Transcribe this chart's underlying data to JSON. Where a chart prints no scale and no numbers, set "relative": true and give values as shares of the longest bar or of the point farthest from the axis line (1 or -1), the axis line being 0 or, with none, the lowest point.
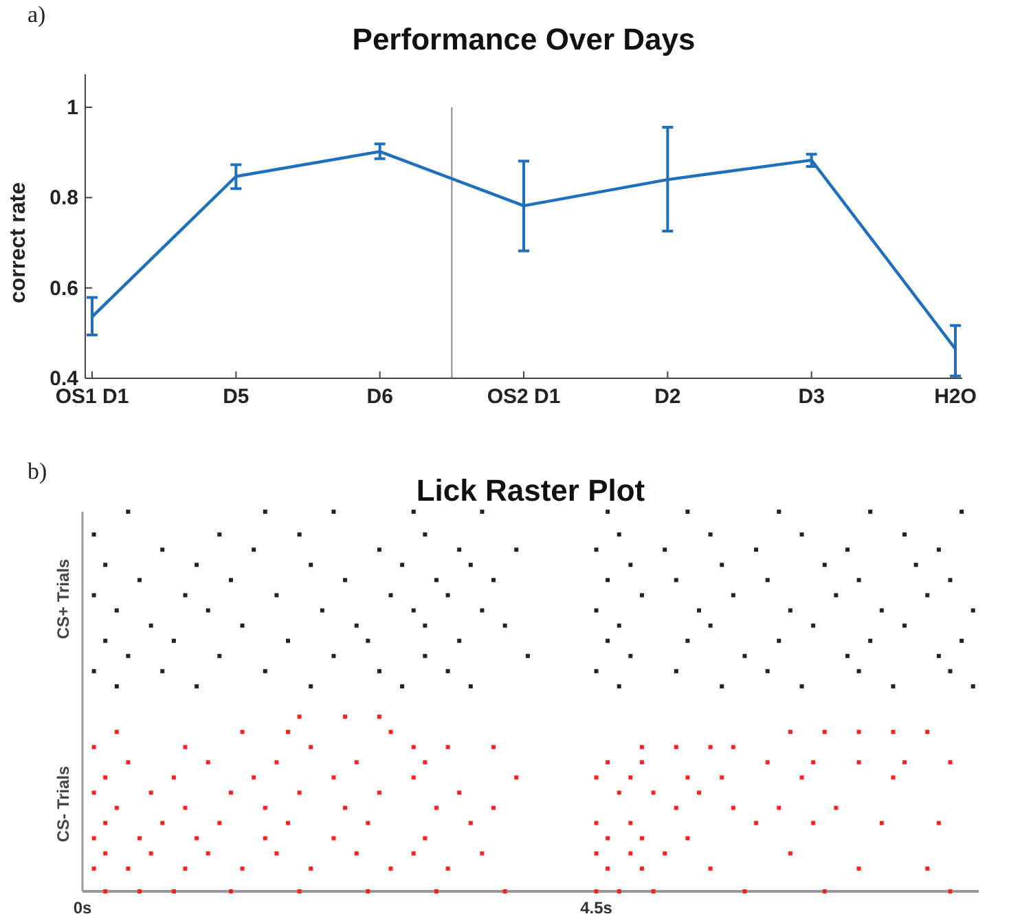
{
  "chart_data": [
    {
      "type": "line",
      "title": "Performance Over Days",
      "ylabel": "correct rate",
      "annotations": [
        "a)"
      ],
      "categories": [
        "OS1 D1",
        "D5",
        "D6",
        "OS2 D1",
        "D2",
        "D3",
        "H2O"
      ],
      "series": [
        {
          "color": "#1f6fbf",
          "values": [
            0.536,
            0.847,
            0.902,
            0.782,
            0.84,
            0.883,
            0.465
          ],
          "errors": [
            [
              0.496,
              0.579
            ],
            [
              0.82,
              0.873
            ],
            [
              0.886,
              0.919
            ],
            [
              0.682,
              0.881
            ],
            [
              0.726,
              0.956
            ],
            [
              0.869,
              0.896
            ],
            [
              0.405,
              0.517
            ]
          ]
        }
      ],
      "ylim": [
        0.4,
        1
      ],
      "yticks": [
        0.4,
        0.6,
        0.8,
        1
      ],
      "marker": "none",
      "line_style": "solid",
      "grid": false
    },
    {
      "type": "scatter",
      "title": "Lick Raster Plot",
      "annotations": [
        "b)"
      ],
      "relative": true,
      "marker": "square",
      "legend": "left",
      "xlim": [
        0,
        7.85
      ],
      "xticks": [
        {
          "value": 0,
          "label": "0s"
        },
        {
          "value": 4.5,
          "label": "4.5s"
        }
      ],
      "series": [
        {
          "name": "CS+ Trials",
          "color": "#222222",
          "x": [
            0.4,
            1.6,
            2.2,
            2.9,
            3.5,
            4.6,
            5.3,
            6.1,
            6.9,
            7.7,
            0.1,
            1.2,
            1.9,
            3.0,
            4.7,
            5.5,
            6.3,
            7.2,
            0.7,
            1.5,
            2.6,
            3.3,
            3.8,
            4.5,
            5.1,
            5.9,
            6.7,
            7.5,
            0.2,
            1.0,
            2.0,
            2.8,
            3.4,
            4.8,
            5.6,
            6.5,
            7.3,
            0.5,
            1.3,
            2.3,
            3.1,
            3.6,
            4.6,
            5.2,
            6.0,
            6.8,
            7.6,
            0.1,
            0.9,
            1.7,
            2.7,
            3.2,
            4.9,
            5.7,
            6.6,
            7.4,
            0.3,
            1.1,
            2.1,
            2.9,
            3.5,
            4.5,
            5.4,
            6.2,
            7.0,
            7.8,
            0.6,
            1.4,
            2.4,
            3.0,
            3.7,
            4.7,
            5.5,
            6.4,
            7.2,
            0.2,
            0.8,
            1.8,
            2.5,
            3.3,
            4.6,
            5.3,
            6.1,
            6.9,
            7.7,
            0.4,
            1.2,
            2.2,
            3.0,
            3.9,
            4.8,
            5.8,
            6.7,
            7.5,
            0.1,
            0.7,
            1.6,
            2.6,
            3.2,
            4.5,
            5.2,
            6.0,
            6.8,
            7.6,
            0.3,
            1.0,
            2.0,
            2.8,
            3.4,
            4.7,
            5.6,
            6.3,
            7.1,
            7.8
          ],
          "values": [
            1,
            1,
            1,
            1,
            1,
            1,
            1,
            1,
            1,
            1,
            0.94,
            0.94,
            0.94,
            0.94,
            0.94,
            0.94,
            0.94,
            0.94,
            0.9,
            0.9,
            0.9,
            0.9,
            0.9,
            0.9,
            0.9,
            0.9,
            0.9,
            0.9,
            0.86,
            0.86,
            0.86,
            0.86,
            0.86,
            0.86,
            0.86,
            0.86,
            0.86,
            0.82,
            0.82,
            0.82,
            0.82,
            0.82,
            0.82,
            0.82,
            0.82,
            0.82,
            0.82,
            0.78,
            0.78,
            0.78,
            0.78,
            0.78,
            0.78,
            0.78,
            0.78,
            0.78,
            0.74,
            0.74,
            0.74,
            0.74,
            0.74,
            0.74,
            0.74,
            0.74,
            0.74,
            0.74,
            0.7,
            0.7,
            0.7,
            0.7,
            0.7,
            0.7,
            0.7,
            0.7,
            0.7,
            0.66,
            0.66,
            0.66,
            0.66,
            0.66,
            0.66,
            0.66,
            0.66,
            0.66,
            0.66,
            0.62,
            0.62,
            0.62,
            0.62,
            0.62,
            0.62,
            0.62,
            0.62,
            0.62,
            0.58,
            0.58,
            0.58,
            0.58,
            0.58,
            0.58,
            0.58,
            0.58,
            0.58,
            0.58,
            0.54,
            0.54,
            0.54,
            0.54,
            0.54,
            0.54,
            0.54,
            0.54,
            0.54,
            0.54
          ]
        },
        {
          "name": "CS- Trials",
          "color": "#ff2020",
          "x": [
            1.9,
            2.3,
            2.6,
            0.3,
            1.4,
            1.8,
            2.7,
            6.2,
            6.5,
            6.8,
            7.1,
            7.4,
            0.1,
            0.9,
            2.0,
            2.9,
            3.2,
            3.6,
            4.9,
            5.2,
            5.5,
            5.7,
            0.4,
            1.1,
            1.7,
            2.4,
            3.0,
            4.6,
            4.9,
            6.0,
            6.4,
            6.8,
            7.2,
            7.6,
            0.2,
            0.8,
            1.5,
            2.2,
            2.9,
            3.8,
            4.5,
            4.8,
            5.3,
            5.6,
            6.3,
            7.1,
            0.1,
            0.6,
            1.3,
            1.9,
            2.6,
            3.3,
            4.7,
            5.0,
            5.4,
            0.3,
            0.9,
            1.6,
            2.3,
            3.1,
            3.6,
            5.2,
            5.7,
            6.1,
            6.6,
            0.2,
            0.7,
            1.2,
            1.8,
            2.5,
            3.4,
            4.5,
            4.8,
            5.9,
            6.4,
            7.0,
            7.5,
            0.1,
            0.5,
            1.0,
            1.6,
            2.2,
            3.0,
            4.6,
            4.9,
            5.3,
            0.2,
            0.6,
            1.1,
            1.7,
            2.4,
            2.9,
            3.5,
            4.5,
            4.8,
            5.1,
            6.2,
            0.1,
            0.4,
            0.9,
            1.4,
            2.0,
            2.7,
            3.2,
            4.6,
            4.9,
            5.5,
            6.8,
            7.4,
            0.2,
            0.5,
            0.8,
            1.3,
            1.9,
            2.5,
            3.1,
            3.7,
            4.5,
            4.7,
            5.0,
            5.8,
            6.5,
            7.6
          ],
          "values": [
            0.46,
            0.46,
            0.46,
            0.42,
            0.42,
            0.42,
            0.42,
            0.42,
            0.42,
            0.42,
            0.42,
            0.42,
            0.38,
            0.38,
            0.38,
            0.38,
            0.38,
            0.38,
            0.38,
            0.38,
            0.38,
            0.38,
            0.34,
            0.34,
            0.34,
            0.34,
            0.34,
            0.34,
            0.34,
            0.34,
            0.34,
            0.34,
            0.34,
            0.34,
            0.3,
            0.3,
            0.3,
            0.3,
            0.3,
            0.3,
            0.3,
            0.3,
            0.3,
            0.3,
            0.3,
            0.3,
            0.26,
            0.26,
            0.26,
            0.26,
            0.26,
            0.26,
            0.26,
            0.26,
            0.26,
            0.22,
            0.22,
            0.22,
            0.22,
            0.22,
            0.22,
            0.22,
            0.22,
            0.22,
            0.22,
            0.18,
            0.18,
            0.18,
            0.18,
            0.18,
            0.18,
            0.18,
            0.18,
            0.18,
            0.18,
            0.18,
            0.18,
            0.14,
            0.14,
            0.14,
            0.14,
            0.14,
            0.14,
            0.14,
            0.14,
            0.14,
            0.1,
            0.1,
            0.1,
            0.1,
            0.1,
            0.1,
            0.1,
            0.1,
            0.1,
            0.1,
            0.1,
            0.06,
            0.06,
            0.06,
            0.06,
            0.06,
            0.06,
            0.06,
            0.06,
            0.06,
            0.06,
            0.06,
            0.06,
            0,
            0,
            0,
            0,
            0,
            0,
            0,
            0,
            0,
            0,
            0,
            0,
            0,
            0
          ]
        }
      ]
    }
  ]
}
